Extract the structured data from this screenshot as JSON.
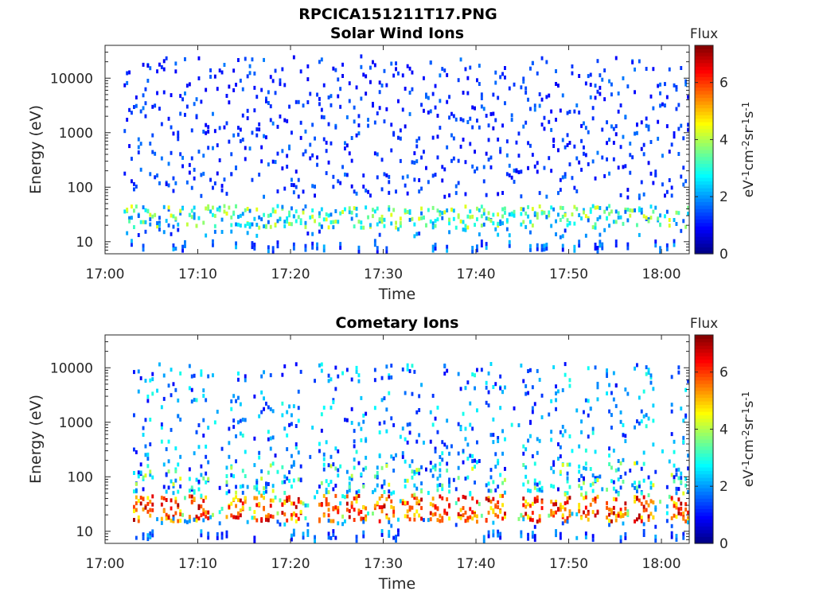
{
  "figure": {
    "title": "RPCICA151211T17.PNG"
  },
  "chart_data": [
    {
      "type": "heatmap",
      "title": "Solar Wind Ions",
      "xlabel": "Time",
      "ylabel": "Energy (eV)",
      "x_ticks": [
        "17:00",
        "17:10",
        "17:20",
        "17:30",
        "17:40",
        "17:50",
        "18:00"
      ],
      "x_range": [
        "17:00",
        "18:03"
      ],
      "y_scale": "log",
      "y_ticks": [
        "10",
        "100",
        "1000",
        "10000"
      ],
      "y_range": [
        6,
        40000
      ],
      "colorbar": {
        "label": "Flux",
        "unit": "eV-1cm-2sr-1s-1",
        "ticks": [
          "0",
          "2",
          "4",
          "6"
        ],
        "range": [
          0,
          7.3
        ],
        "colormap": "jet"
      },
      "time_range_shown": [
        "17:02",
        "18:03"
      ],
      "core_energy_ev": [
        18,
        45
      ],
      "core_flux_typical": [
        1.5,
        4.5
      ],
      "scattered_flux_typical": [
        0.8,
        1.8
      ]
    },
    {
      "type": "heatmap",
      "title": "Cometary Ions",
      "xlabel": "Time",
      "ylabel": "Energy (eV)",
      "x_ticks": [
        "17:00",
        "17:10",
        "17:20",
        "17:30",
        "17:40",
        "17:50",
        "18:00"
      ],
      "x_range": [
        "17:00",
        "18:03"
      ],
      "y_scale": "log",
      "y_ticks": [
        "10",
        "100",
        "1000",
        "10000"
      ],
      "y_range": [
        6,
        40000
      ],
      "colorbar": {
        "label": "Flux",
        "unit": "eV-1cm-2sr-1s-1",
        "ticks": [
          "0",
          "2",
          "4",
          "6"
        ],
        "range": [
          0,
          7.3
        ],
        "colormap": "jet"
      },
      "time_range_shown": [
        "17:03",
        "18:03"
      ],
      "core_energy_ev": [
        15,
        45
      ],
      "core_flux_typical": [
        4.5,
        7.0
      ],
      "burst_times": [
        "17:04",
        "17:07",
        "17:10",
        "17:14",
        "17:17",
        "17:20",
        "17:24",
        "17:27",
        "17:30",
        "17:33",
        "17:36",
        "17:39",
        "17:42",
        "17:46",
        "17:49",
        "17:52",
        "17:55",
        "17:58",
        "18:02"
      ],
      "scattered_flux_typical": [
        0.8,
        3.0
      ]
    }
  ]
}
